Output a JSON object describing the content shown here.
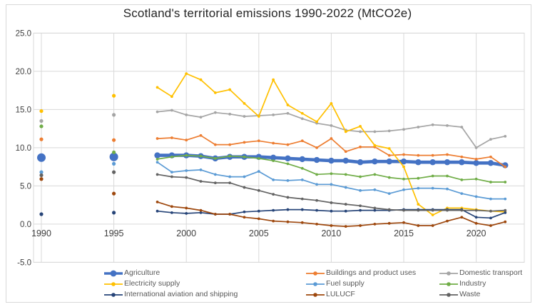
{
  "styles": {
    "background": "#FFFFFF",
    "frame_border": "#D9D9D9",
    "gridline": "#D9D9D9",
    "plot_border": "#D9D9D9",
    "title_color": "#262626",
    "axis_label_color": "#404040",
    "legend_text_color": "#595959"
  },
  "chart_data": {
    "type": "line",
    "title": "Scotland's territorial emissions 1990-2022 (MtCO2e)",
    "xlabel": "",
    "ylabel": "",
    "ylim": [
      -5.0,
      25.0
    ],
    "grid": true,
    "legend_position": "bottom",
    "y_ticks": [
      {
        "label": "25.0",
        "value": 25
      },
      {
        "label": "20.0",
        "value": 20
      },
      {
        "label": "15.0",
        "value": 15
      },
      {
        "label": "10.0",
        "value": 10
      },
      {
        "label": "5.0",
        "value": 5
      },
      {
        "label": "0.0",
        "value": 0
      },
      {
        "label": "-5.0",
        "value": -5
      }
    ],
    "x_ticks": [
      {
        "label": "1990",
        "year": 1990
      },
      {
        "label": "1995",
        "year": 1995
      },
      {
        "label": "2000",
        "year": 2000
      },
      {
        "label": "2005",
        "year": 2005
      },
      {
        "label": "2010",
        "year": 2010
      },
      {
        "label": "2015",
        "year": 2015
      },
      {
        "label": "2020",
        "year": 2020
      }
    ],
    "isolated_years": [
      1990,
      1995
    ],
    "years": [
      1998,
      1999,
      2000,
      2001,
      2002,
      2003,
      2004,
      2005,
      2006,
      2007,
      2008,
      2009,
      2010,
      2011,
      2012,
      2013,
      2014,
      2015,
      2016,
      2017,
      2018,
      2019,
      2020,
      2021,
      2022
    ],
    "series": [
      {
        "name": "Agriculture",
        "color": "#4472C4",
        "emphasis": true,
        "isolated_values": [
          8.7,
          8.8
        ],
        "values": [
          9.0,
          9.0,
          9.0,
          8.9,
          8.6,
          8.8,
          8.8,
          8.8,
          8.7,
          8.6,
          8.5,
          8.4,
          8.3,
          8.3,
          8.1,
          8.2,
          8.2,
          8.2,
          8.1,
          8.1,
          8.1,
          8.1,
          8.0,
          8.0,
          7.7
        ]
      },
      {
        "name": "Buildings and product uses",
        "color": "#ED7D31",
        "emphasis": false,
        "isolated_values": [
          11.1,
          11.0
        ],
        "values": [
          11.2,
          11.3,
          11.0,
          11.6,
          10.4,
          10.4,
          10.7,
          10.9,
          10.6,
          10.4,
          10.9,
          10.0,
          11.2,
          9.5,
          10.1,
          10.1,
          9.0,
          9.1,
          9.0,
          9.0,
          9.1,
          8.8,
          8.5,
          8.8,
          7.5
        ]
      },
      {
        "name": "Domestic transport",
        "color": "#A5A5A5",
        "emphasis": false,
        "isolated_values": [
          13.5,
          14.3
        ],
        "values": [
          14.7,
          14.9,
          14.3,
          14.0,
          14.6,
          14.4,
          14.1,
          14.2,
          14.3,
          14.5,
          13.8,
          13.2,
          12.9,
          12.3,
          12.1,
          12.1,
          12.2,
          12.4,
          12.7,
          13.0,
          12.9,
          12.7,
          10.0,
          11.1,
          11.5
        ]
      },
      {
        "name": "Electricity supply",
        "color": "#FFC000",
        "emphasis": false,
        "isolated_values": [
          14.8,
          16.8
        ],
        "values": [
          17.9,
          16.7,
          19.7,
          18.9,
          17.2,
          17.6,
          15.8,
          14.1,
          18.9,
          15.6,
          14.5,
          13.4,
          15.8,
          12.1,
          12.8,
          10.3,
          9.9,
          7.5,
          2.6,
          1.2,
          2.1,
          2.1,
          1.9,
          1.7,
          1.6
        ]
      },
      {
        "name": "Fuel supply",
        "color": "#5B9BD5",
        "emphasis": false,
        "isolated_values": [
          6.8,
          7.9
        ],
        "values": [
          8.1,
          6.8,
          7.0,
          7.1,
          6.5,
          6.2,
          6.2,
          6.9,
          5.8,
          5.7,
          5.8,
          5.2,
          5.2,
          4.8,
          4.4,
          4.5,
          4.0,
          4.5,
          4.7,
          4.7,
          4.6,
          4.0,
          3.6,
          3.3,
          3.3
        ]
      },
      {
        "name": "Industry",
        "color": "#70AD47",
        "emphasis": false,
        "isolated_values": [
          12.8,
          9.4
        ],
        "values": [
          8.5,
          8.8,
          9.0,
          8.9,
          8.6,
          8.9,
          8.8,
          8.6,
          8.3,
          7.9,
          7.3,
          6.5,
          6.6,
          6.5,
          6.2,
          6.5,
          6.1,
          5.9,
          6.0,
          6.3,
          6.3,
          5.8,
          5.9,
          5.5,
          5.5
        ]
      },
      {
        "name": "International aviation and shipping",
        "color": "#264478",
        "emphasis": false,
        "isolated_values": [
          1.3,
          1.5
        ],
        "values": [
          1.7,
          1.5,
          1.4,
          1.5,
          1.3,
          1.3,
          1.6,
          1.7,
          1.8,
          1.9,
          1.9,
          1.8,
          1.7,
          1.7,
          1.8,
          1.8,
          1.8,
          1.9,
          1.9,
          1.9,
          1.9,
          1.9,
          0.9,
          0.8,
          1.5
        ]
      },
      {
        "name": "LULUCF",
        "color": "#9E480E",
        "emphasis": false,
        "isolated_values": [
          5.9,
          4.0
        ],
        "values": [
          2.9,
          2.3,
          2.1,
          1.8,
          1.3,
          1.3,
          0.9,
          0.7,
          0.4,
          0.3,
          0.2,
          0.0,
          -0.2,
          -0.3,
          -0.2,
          0.0,
          0.1,
          0.2,
          -0.2,
          -0.2,
          0.4,
          0.9,
          0.1,
          -0.2,
          0.3
        ]
      },
      {
        "name": "Waste",
        "color": "#636363",
        "emphasis": false,
        "isolated_values": [
          6.4,
          6.8
        ],
        "values": [
          6.5,
          6.2,
          6.1,
          5.6,
          5.4,
          5.4,
          4.8,
          4.4,
          3.9,
          3.5,
          3.3,
          3.1,
          2.8,
          2.6,
          2.4,
          2.1,
          1.9,
          1.8,
          1.8,
          1.8,
          1.8,
          1.8,
          1.8,
          1.7,
          1.8
        ]
      }
    ]
  }
}
